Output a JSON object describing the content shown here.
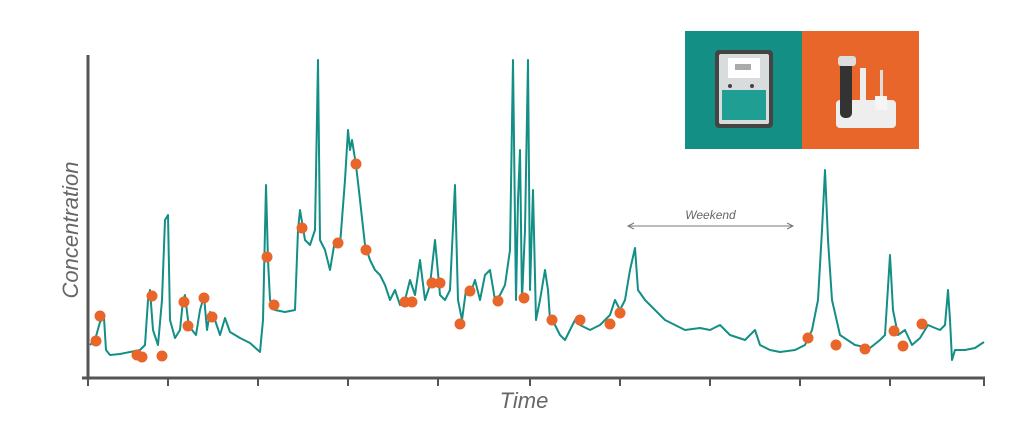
{
  "chart_data": {
    "type": "line",
    "x_label": "Time",
    "y_label": "Concentration",
    "annotation": {
      "text": "Weekend",
      "x": [
        540,
        705
      ],
      "y": 150
    },
    "xlim": [
      0,
      896
    ],
    "ylim": [
      0,
      318
    ],
    "xticks": [
      0,
      80,
      170,
      260,
      350,
      442,
      532,
      622,
      712,
      802,
      896
    ],
    "series": [
      {
        "type": "line",
        "color": "#138f86",
        "x": [
          2,
          7,
          12,
          16,
          18,
          22,
          32,
          42,
          52,
          57,
          60,
          62,
          65,
          70,
          74,
          77,
          80,
          82,
          87,
          92,
          95,
          97,
          100,
          104,
          108,
          112,
          116,
          119,
          122,
          127,
          132,
          137,
          142,
          152,
          162,
          172,
          175,
          178,
          180,
          182,
          187,
          197,
          207,
          210,
          212,
          217,
          222,
          227,
          230,
          232,
          237,
          242,
          247,
          252,
          257,
          260,
          262,
          264,
          268,
          272,
          277,
          282,
          287,
          292,
          297,
          302,
          307,
          312,
          317,
          322,
          327,
          332,
          337,
          342,
          347,
          352,
          357,
          362,
          367,
          370,
          374,
          378,
          382,
          387,
          392,
          397,
          402,
          407,
          412,
          417,
          422,
          425,
          428,
          430,
          432,
          434,
          437,
          440,
          442,
          445,
          448,
          452,
          457,
          460,
          462,
          467,
          472,
          477,
          482,
          487,
          492,
          502,
          512,
          517,
          522,
          527,
          532,
          537,
          542,
          547,
          550,
          557,
          567,
          577,
          587,
          597,
          612,
          622,
          632,
          642,
          657,
          667,
          672,
          682,
          692,
          707,
          717,
          724,
          730,
          734,
          737,
          740,
          744,
          752,
          767,
          782,
          792,
          797,
          802,
          805,
          810,
          817,
          824,
          832,
          840,
          847,
          852,
          857,
          860,
          862,
          864,
          867,
          877,
          887,
          896
        ],
        "values": [
          31,
          36,
          54,
          58,
          26,
          21,
          22,
          24,
          26,
          31,
          76,
          86,
          46,
          31,
          76,
          156,
          161,
          56,
          38,
          46,
          76,
          81,
          56,
          46,
          41,
          66,
          80,
          46,
          64,
          56,
          41,
          58,
          44,
          38,
          33,
          24,
          56,
          191,
          116,
          76,
          66,
          64,
          66,
          146,
          166,
          136,
          131,
          146,
          316,
          136,
          126,
          106,
          136,
          131,
          196,
          246,
          226,
          236,
          211,
          176,
          131,
          116,
          106,
          101,
          91,
          76,
          86,
          71,
          76,
          96,
          81,
          116,
          76,
          91,
          136,
          81,
          76,
          86,
          191,
          76,
          56,
          86,
          81,
          96,
          76,
          101,
          106,
          76,
          81,
          91,
          126,
          316,
          76,
          176,
          226,
          76,
          146,
          316,
          86,
          186,
          56,
          76,
          106,
          86,
          56,
          51,
          41,
          36,
          46,
          56,
          51,
          46,
          51,
          56,
          61,
          76,
          66,
          76,
          106,
          128,
          86,
          76,
          66,
          56,
          51,
          46,
          48,
          46,
          51,
          41,
          36,
          46,
          31,
          26,
          24,
          26,
          31,
          46,
          76,
          146,
          206,
          136,
          76,
          41,
          31,
          28,
          36,
          41,
          121,
          66,
          41,
          46,
          31,
          38,
          51,
          48,
          46,
          51,
          86,
          56,
          16,
          26,
          26,
          28,
          34
        ]
      },
      {
        "type": "scatter",
        "color": "#e8662a",
        "x": [
          8,
          12,
          49,
          54,
          64,
          74,
          96,
          100,
          116,
          124,
          179,
          186,
          214,
          250,
          268,
          278,
          317,
          324,
          344,
          352,
          372,
          382,
          410,
          436,
          464,
          492,
          522,
          532,
          720,
          748,
          777,
          806,
          815,
          834
        ],
        "values": [
          35,
          60,
          21,
          19,
          80,
          20,
          74,
          50,
          78,
          59,
          119,
          71,
          148,
          133,
          212,
          126,
          74,
          74,
          93,
          93,
          52,
          85,
          75,
          78,
          56,
          56,
          52,
          63,
          38,
          31,
          27,
          45,
          30,
          52
        ]
      }
    ]
  }
}
